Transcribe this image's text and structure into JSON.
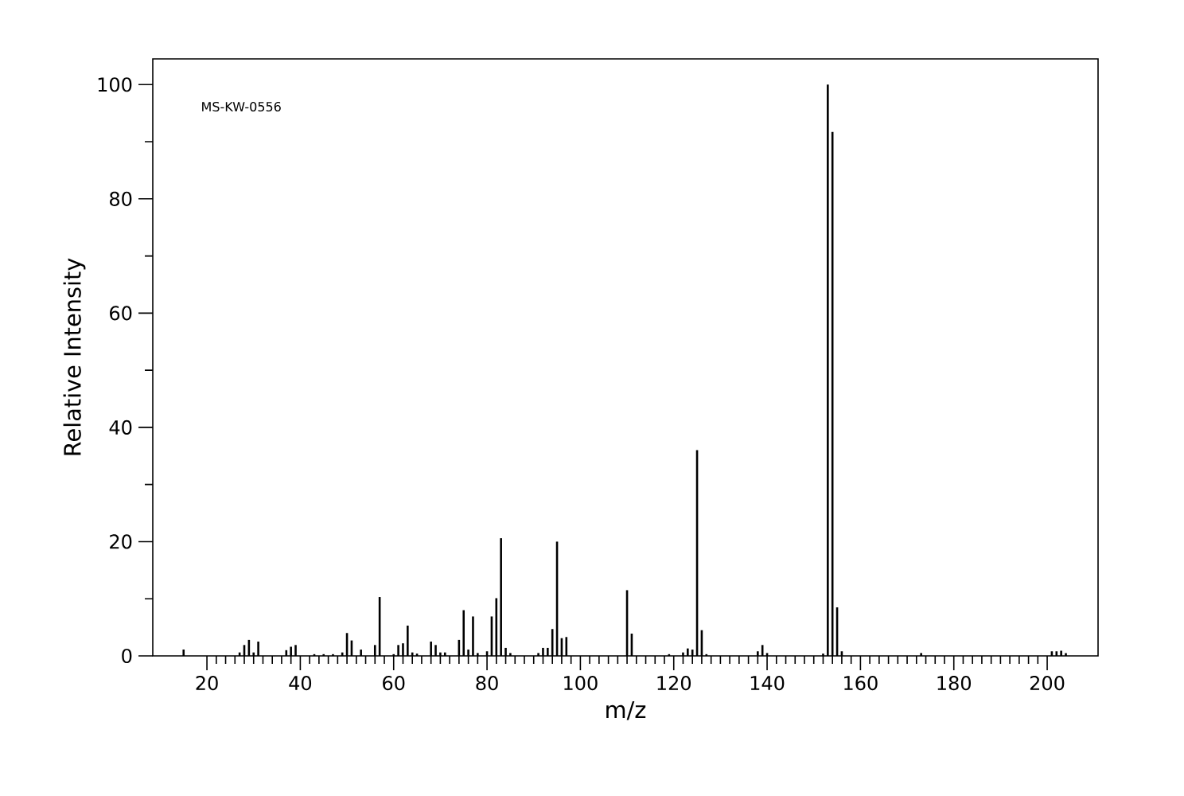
{
  "chart_data": {
    "type": "bar",
    "xlabel": "m/z",
    "ylabel": "Relative Intensity",
    "annotations": [
      "MS-KW-0556"
    ],
    "color": "#000000",
    "x": [
      15,
      27,
      28,
      29,
      30,
      31,
      37,
      38,
      39,
      43,
      45,
      47,
      49,
      50,
      51,
      53,
      56,
      57,
      60,
      61,
      62,
      63,
      64,
      65,
      68,
      69,
      70,
      71,
      74,
      75,
      76,
      77,
      78,
      80,
      81,
      82,
      83,
      84,
      85,
      91,
      92,
      93,
      94,
      95,
      96,
      97,
      110,
      111,
      119,
      122,
      123,
      124,
      125,
      126,
      127,
      138,
      139,
      140,
      152,
      153,
      154,
      155,
      156,
      173,
      201,
      202,
      203,
      204
    ],
    "values": [
      1.1,
      0.6,
      1.9,
      2.8,
      0.6,
      2.5,
      1.0,
      1.6,
      1.9,
      0.3,
      0.3,
      0.3,
      0.6,
      4.0,
      2.7,
      1.1,
      1.9,
      10.3,
      0.3,
      1.9,
      2.2,
      5.3,
      0.6,
      0.4,
      2.5,
      1.9,
      0.6,
      0.6,
      2.8,
      8.0,
      1.1,
      6.9,
      0.5,
      0.8,
      6.9,
      10.1,
      20.6,
      1.4,
      0.5,
      0.5,
      1.4,
      1.4,
      4.7,
      20.0,
      3.1,
      3.3,
      11.5,
      3.9,
      0.3,
      0.6,
      1.3,
      1.1,
      36,
      4.5,
      0.3,
      0.8,
      1.9,
      0.5,
      0.4,
      100,
      91.7,
      8.5,
      0.8,
      0.5,
      0.8,
      0.8,
      0.9,
      0.5
    ],
    "xlim": [
      8.4,
      210.9
    ],
    "ylim": [
      0,
      104.5
    ],
    "xticks": [
      20,
      40,
      60,
      80,
      100,
      120,
      140,
      160,
      180,
      200
    ],
    "yticks": [
      0,
      20,
      40,
      60,
      80,
      100
    ]
  }
}
